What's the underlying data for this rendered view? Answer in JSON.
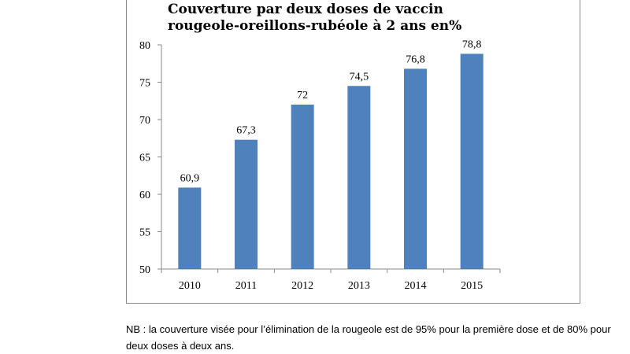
{
  "chart_data": {
    "type": "bar",
    "title": "Couverture par deux doses de vaccin rougeole-oreillons-rubéole à 2 ans en%",
    "title_lines": [
      "Couverture par deux doses de vaccin",
      "rougeole-oreillons-rubéole à 2 ans en%"
    ],
    "categories": [
      "2010",
      "2011",
      "2012",
      "2013",
      "2014",
      "2015"
    ],
    "values": [
      60.9,
      67.3,
      72,
      74.5,
      76.8,
      78.8
    ],
    "value_labels": [
      "60,9",
      "67,3",
      "72",
      "74,5",
      "76,8",
      "78,8"
    ],
    "ylim": [
      50,
      80
    ],
    "yticks": [
      50,
      55,
      60,
      65,
      70,
      75,
      80
    ],
    "xlabel": "",
    "ylabel": "",
    "bar_color": "#4f81bd",
    "grid": false,
    "legend": "none"
  },
  "note": "NB : la couverture visée pour l’élimination de la rougeole est de 95% pour la première dose et de 80% pour deux doses à deux ans."
}
